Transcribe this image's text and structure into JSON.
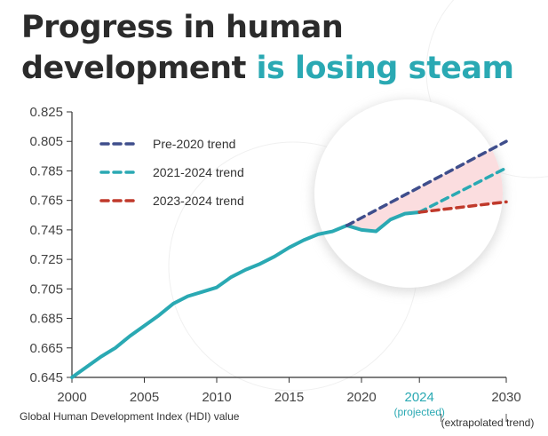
{
  "title": {
    "part1": "Progress in human",
    "part2": "development",
    "accent": "is losing steam"
  },
  "colors": {
    "main": "#2aa9b3",
    "pre2020": "#3f4e8c",
    "trend2124": "#2aa9b3",
    "trend2324": "#c0392b",
    "gap_fill": "#fbd9dc"
  },
  "chart_data": {
    "type": "line",
    "xlabel": "Global Human Development Index (HDI) value",
    "ylim": [
      0.645,
      0.825
    ],
    "xlim": [
      2000,
      2030
    ],
    "y_ticks": [
      "0.645",
      "0.665",
      "0.685",
      "0.705",
      "0.725",
      "0.745",
      "0.765",
      "0.785",
      "0.805",
      "0.825"
    ],
    "x_ticks": [
      {
        "value": 2000,
        "label": "2000"
      },
      {
        "value": 2005,
        "label": "2005"
      },
      {
        "value": 2010,
        "label": "2010"
      },
      {
        "value": 2015,
        "label": "2015"
      },
      {
        "value": 2020,
        "label": "2020"
      },
      {
        "value": 2024,
        "label": "2024",
        "highlight": true
      },
      {
        "value": 2030,
        "label": "2030"
      }
    ],
    "x_notes": {
      "projected": "(projected)",
      "extrapolated": "(extrapolated trend)"
    },
    "series": [
      {
        "name": "Global HDI",
        "x": [
          2000,
          2001,
          2002,
          2003,
          2004,
          2005,
          2006,
          2007,
          2008,
          2009,
          2010,
          2011,
          2012,
          2013,
          2014,
          2015,
          2016,
          2017,
          2018,
          2019,
          2020,
          2021,
          2022,
          2023,
          2024
        ],
        "values": [
          0.645,
          0.652,
          0.659,
          0.665,
          0.673,
          0.68,
          0.687,
          0.695,
          0.7,
          0.703,
          0.706,
          0.713,
          0.718,
          0.722,
          0.727,
          0.733,
          0.738,
          0.742,
          0.744,
          0.748,
          0.745,
          0.744,
          0.752,
          0.756,
          0.757
        ]
      }
    ],
    "trends": [
      {
        "name": "Pre-2020 trend",
        "x": [
          2019,
          2030
        ],
        "values": [
          0.748,
          0.805
        ]
      },
      {
        "name": "2021-2024 trend",
        "x": [
          2024,
          2030
        ],
        "values": [
          0.757,
          0.787
        ]
      },
      {
        "name": "2023-2024 trend",
        "x": [
          2024,
          2030
        ],
        "values": [
          0.757,
          0.764
        ]
      }
    ],
    "legend": [
      "Pre-2020 trend",
      "2021-2024 trend",
      "2023-2024 trend"
    ]
  }
}
